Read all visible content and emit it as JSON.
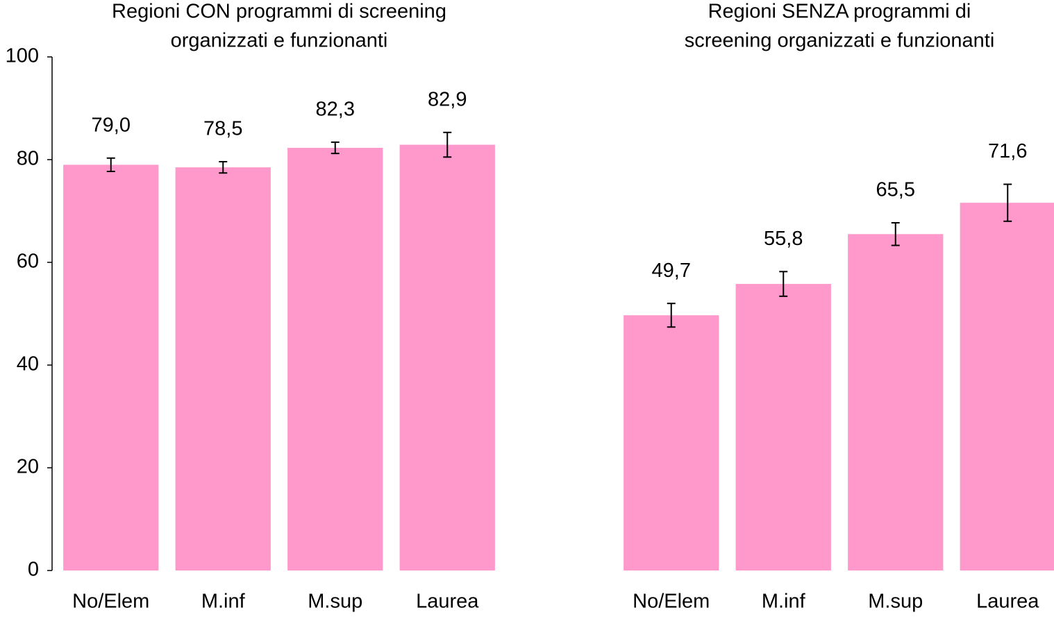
{
  "chart_data": [
    {
      "type": "bar",
      "title": [
        "Regioni CON programmi di screening",
        "organizzati e funzionanti"
      ],
      "categories": [
        "No/Elem",
        "M.inf",
        "M.sup",
        "Laurea"
      ],
      "values": [
        79.0,
        78.5,
        82.3,
        82.9
      ],
      "value_labels": [
        "79,0",
        "78,5",
        "82,3",
        "82,9"
      ],
      "errors": [
        1.3,
        1.1,
        1.1,
        2.4
      ],
      "color": "#ff99cc",
      "ylim": [
        0,
        100
      ],
      "yticks": [
        0,
        20,
        40,
        60,
        80,
        100
      ],
      "grid": false
    },
    {
      "type": "bar",
      "title": [
        "Regioni SENZA programmi di",
        "screening organizzati e funzionanti"
      ],
      "categories": [
        "No/Elem",
        "M.inf",
        "M.sup",
        "Laurea"
      ],
      "values": [
        49.7,
        55.8,
        65.5,
        71.6
      ],
      "value_labels": [
        "49,7",
        "55,8",
        "65,5",
        "71,6"
      ],
      "errors": [
        2.3,
        2.4,
        2.2,
        3.6
      ],
      "color": "#ff99cc",
      "ylim": [
        0,
        100
      ],
      "grid": false
    }
  ]
}
